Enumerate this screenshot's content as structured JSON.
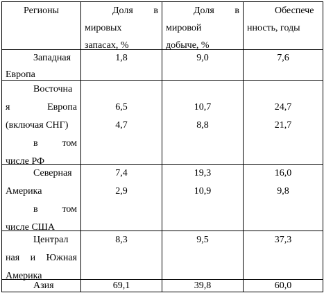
{
  "table": {
    "header": [
      [
        "Регионы"
      ],
      [
        "Доля в",
        "мировых",
        "запасах, %"
      ],
      [
        "Доля в",
        "мировой",
        "добыче, %"
      ],
      [
        "Обеспече",
        "нность, годы"
      ]
    ],
    "rows": [
      [
        [
          "Западная",
          "Европа"
        ],
        [
          "1,8"
        ],
        [
          "9,0"
        ],
        [
          "7,6"
        ]
      ],
      [
        [
          "Восточна",
          "я Европа",
          "(включая СНГ)",
          "в том",
          "числе РФ"
        ],
        [
          "6,5",
          "4,7"
        ],
        [
          "10,7",
          "8,8"
        ],
        [
          "24,7",
          "21,7"
        ]
      ],
      [
        [
          "Северная",
          "Америка",
          "в том",
          "числе США"
        ],
        [
          "7,4",
          "2,9"
        ],
        [
          "19,3",
          "10,9"
        ],
        [
          "16,0",
          "9,8"
        ]
      ],
      [
        [
          "Централ",
          "ная и Южная",
          "Америка"
        ],
        [
          "8,3"
        ],
        [
          "9,5"
        ],
        [
          "37,3"
        ]
      ],
      [
        [
          "Азия"
        ],
        [
          "69,1"
        ],
        [
          "39,8"
        ],
        [
          "60,0"
        ]
      ]
    ]
  }
}
